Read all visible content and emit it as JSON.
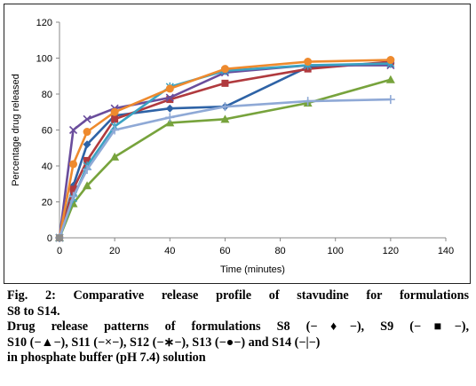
{
  "chart_data": {
    "type": "line",
    "xlabel": "Time (minutes)",
    "ylabel": "Percentage drug released",
    "xlim": [
      0,
      140
    ],
    "ylim": [
      0,
      120
    ],
    "xticks": [
      0,
      20,
      40,
      60,
      80,
      100,
      120,
      140
    ],
    "yticks": [
      0,
      20,
      40,
      60,
      80,
      100,
      120
    ],
    "grid": false,
    "legend": "none",
    "series": [
      {
        "name": "S8",
        "marker": "diamond",
        "color": "#2e63a6",
        "x": [
          0,
          5,
          10,
          20,
          40,
          60,
          90,
          120
        ],
        "y": [
          0,
          29,
          52,
          68,
          72,
          73,
          95,
          97
        ]
      },
      {
        "name": "S9",
        "marker": "square",
        "color": "#b03a3e",
        "x": [
          0,
          5,
          10,
          20,
          40,
          60,
          90,
          120
        ],
        "y": [
          0,
          27,
          43,
          66,
          77,
          86,
          94,
          98
        ]
      },
      {
        "name": "S10",
        "marker": "triangle",
        "color": "#77a33c",
        "x": [
          0,
          5,
          10,
          20,
          40,
          60,
          90,
          120
        ],
        "y": [
          0,
          19,
          29,
          45,
          64,
          66,
          75,
          88
        ]
      },
      {
        "name": "S11",
        "marker": "x",
        "color": "#6a4d9c",
        "x": [
          0,
          5,
          10,
          20,
          40,
          60,
          90,
          120
        ],
        "y": [
          0,
          60,
          66,
          72,
          78,
          92,
          96,
          96
        ]
      },
      {
        "name": "S12",
        "marker": "star",
        "color": "#3aa2c2",
        "x": [
          0,
          5,
          10,
          20,
          40,
          60,
          90,
          120
        ],
        "y": [
          0,
          22,
          40,
          62,
          84,
          93,
          96,
          97
        ]
      },
      {
        "name": "S13",
        "marker": "circle",
        "color": "#ee8a2e",
        "x": [
          0,
          5,
          10,
          20,
          40,
          60,
          90,
          120
        ],
        "y": [
          0,
          41,
          59,
          70,
          83,
          94,
          98,
          99
        ]
      },
      {
        "name": "S14",
        "marker": "plus",
        "color": "#8fa9d6",
        "x": [
          0,
          5,
          10,
          20,
          40,
          60,
          90,
          120
        ],
        "y": [
          0,
          23,
          38,
          60,
          67,
          73,
          76,
          77
        ]
      }
    ]
  },
  "caption": {
    "line1": "Fig. 2: Comparative release profile of stavudine for formulations",
    "line2": "S8 to S14.",
    "line3": "Drug release patterns of formulations S8 (−♦−), S9 (−■−),",
    "line4": "S10 (−▲−), S11 (−×−), S12 (−∗−), S13 (−●−) and S14 (−|−)",
    "line5": "in phosphate buffer (pH 7.4) solution"
  }
}
